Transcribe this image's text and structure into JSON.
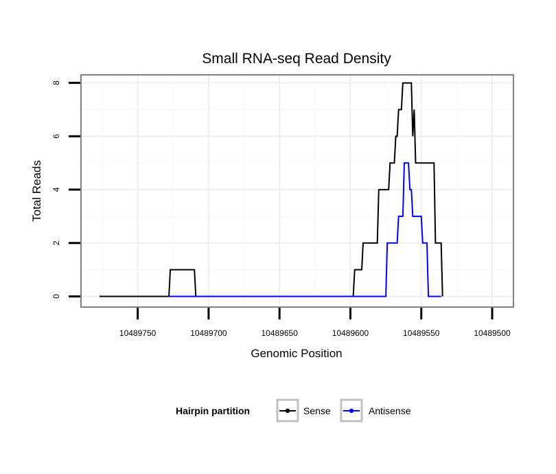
{
  "chart_data": {
    "type": "line",
    "title": "Small RNA-seq Read Density",
    "xlabel": "Genomic Position",
    "ylabel": "Total Reads",
    "xlim": [
      10489790,
      10489485
    ],
    "ylim": [
      -0.4,
      8.3
    ],
    "x_reversed": true,
    "x_ticks": [
      10489750,
      10489700,
      10489650,
      10489600,
      10489550,
      10489500
    ],
    "x_tick_labels": [
      "10489750",
      "10489700",
      "10489650",
      "10489600",
      "10489550",
      "10489500"
    ],
    "y_ticks": [
      0,
      2,
      4,
      6,
      8
    ],
    "y_tick_labels": [
      "0",
      "2",
      "4",
      "6",
      "8"
    ],
    "grid": true,
    "legend": {
      "title": "Hairpin partition",
      "position": "bottom",
      "entries": [
        "Sense",
        "Antisense"
      ]
    },
    "series": [
      {
        "name": "Sense",
        "color": "#000000",
        "points": [
          [
            10489777,
            0
          ],
          [
            10489728,
            0
          ],
          [
            10489727,
            1
          ],
          [
            10489710,
            1
          ],
          [
            10489709,
            0
          ],
          [
            10489598,
            0
          ],
          [
            10489597,
            1
          ],
          [
            10489592,
            1
          ],
          [
            10489591,
            2
          ],
          [
            10489581,
            2
          ],
          [
            10489580,
            4
          ],
          [
            10489573,
            4
          ],
          [
            10489572,
            5
          ],
          [
            10489569,
            5
          ],
          [
            10489568,
            6
          ],
          [
            10489567,
            6
          ],
          [
            10489566,
            7
          ],
          [
            10489564,
            7
          ],
          [
            10489563,
            8
          ],
          [
            10489557,
            8
          ],
          [
            10489556,
            6
          ],
          [
            10489555,
            7
          ],
          [
            10489554,
            5
          ],
          [
            10489541,
            5
          ],
          [
            10489540,
            2
          ],
          [
            10489536,
            2
          ],
          [
            10489535,
            0
          ]
        ]
      },
      {
        "name": "Antisense",
        "color": "#0000ff",
        "points": [
          [
            10489728,
            0
          ],
          [
            10489709,
            0
          ],
          [
            10489598,
            0
          ],
          [
            10489575,
            0
          ],
          [
            10489574,
            2
          ],
          [
            10489567,
            2
          ],
          [
            10489566,
            3
          ],
          [
            10489563,
            3
          ],
          [
            10489562,
            5
          ],
          [
            10489559,
            5
          ],
          [
            10489558,
            4
          ],
          [
            10489557,
            4
          ],
          [
            10489556,
            3
          ],
          [
            10489550,
            3
          ],
          [
            10489549,
            2
          ],
          [
            10489546,
            2
          ],
          [
            10489545,
            0
          ],
          [
            10489536,
            0
          ]
        ]
      }
    ]
  }
}
